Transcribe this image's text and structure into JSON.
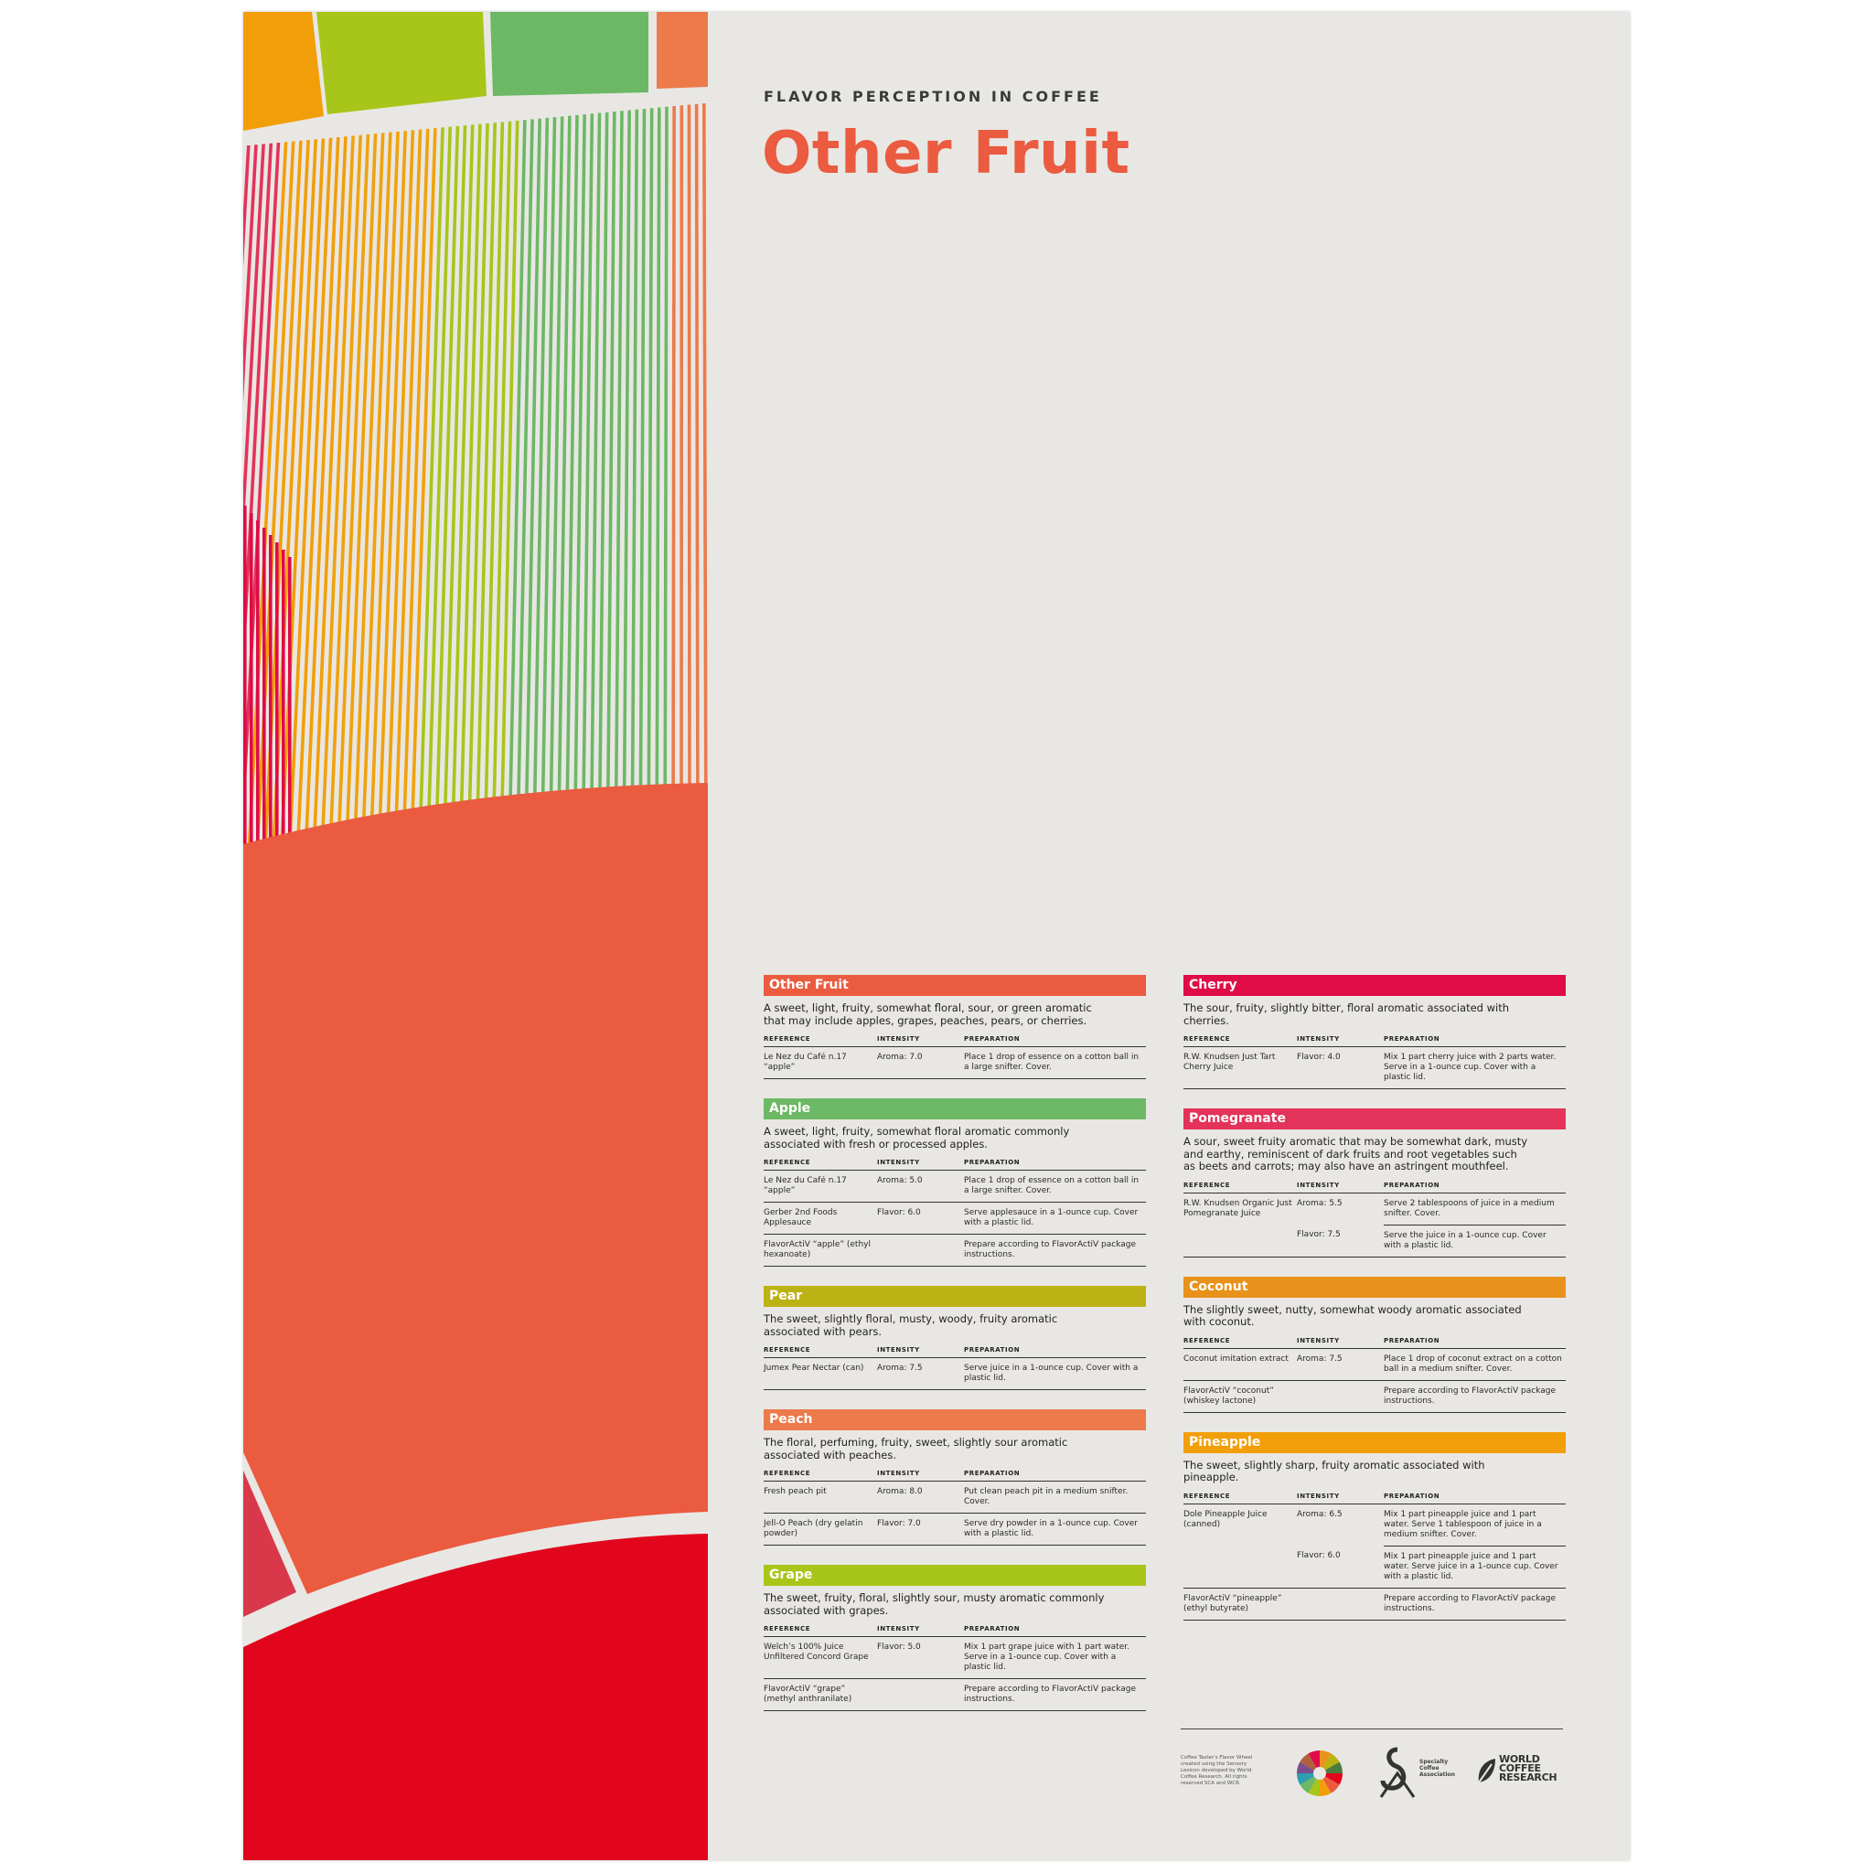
{
  "header": {
    "eyebrow": "FLAVOR PERCEPTION IN COFFEE",
    "title": "Other Fruit"
  },
  "table_labels": {
    "reference": "REFERENCE",
    "intensity": "INTENSITY",
    "preparation": "PREPARATION"
  },
  "colors": {
    "other_fruit": "#ea5b40",
    "apple": "#6cb865",
    "pear": "#bbb215",
    "peach": "#ec7a4a",
    "grape": "#a8c51a",
    "cherry": "#df0c47",
    "pomegranate": "#e3335a",
    "coconut": "#e8921c",
    "pineapple": "#f29e08",
    "berry_red": "#e1061c",
    "background": "#e9e7e4"
  },
  "sections_left": [
    {
      "title": "Other Fruit",
      "color": "#ea5b40",
      "description": "A sweet, light, fruity, somewhat floral, sour, or green aromatic that may include apples, grapes, peaches, pears, or cherries.",
      "rows": [
        {
          "reference": "Le Nez du Café n.17 “apple”",
          "intensity": "Aroma: 7.0",
          "preparation": "Place 1 drop of essence on a cotton ball in a large snifter. Cover."
        }
      ]
    },
    {
      "title": "Apple",
      "color": "#6cb865",
      "description": "A sweet, light, fruity, somewhat floral aromatic commonly associated with fresh or processed apples.",
      "rows": [
        {
          "reference": "Le Nez du Café n.17 “apple”",
          "intensity": "Aroma: 5.0",
          "preparation": "Place 1 drop of essence on a cotton ball in a large snifter. Cover."
        },
        {
          "reference": "Gerber 2nd Foods Applesauce",
          "intensity": "Flavor: 6.0",
          "preparation": "Serve applesauce in a 1-ounce cup. Cover with a plastic lid."
        },
        {
          "reference": "FlavorActiV “apple” (ethyl hexanoate)",
          "intensity": "",
          "preparation": "Prepare according to FlavorActiV package instructions."
        }
      ]
    },
    {
      "title": "Pear",
      "color": "#bbb215",
      "description": "The sweet, slightly floral, musty, woody, fruity aromatic associated with pears.",
      "rows": [
        {
          "reference": "Jumex Pear Nectar (can)",
          "intensity": "Aroma: 7.5",
          "preparation": "Serve juice in a 1-ounce cup. Cover with a plastic lid."
        }
      ]
    },
    {
      "title": "Peach",
      "color": "#ec7a4a",
      "description": "The floral, perfuming, fruity, sweet, slightly sour aromatic associated with peaches.",
      "rows": [
        {
          "reference": "Fresh peach pit",
          "intensity": "Aroma: 8.0",
          "preparation": "Put clean peach pit in a medium snifter. Cover."
        },
        {
          "reference": "Jell-O Peach (dry gelatin powder)",
          "intensity": "Flavor: 7.0",
          "preparation": "Serve dry powder in a 1-ounce cup. Cover with a plastic lid."
        }
      ]
    },
    {
      "title": "Grape",
      "color": "#a8c51a",
      "description": "The sweet, fruity, floral, slightly sour, musty aromatic commonly associated with grapes.",
      "rows": [
        {
          "reference": "Welch’s 100% Juice Unfiltered Concord Grape",
          "intensity": "Flavor: 5.0",
          "preparation": "Mix 1 part grape juice with 1 part water. Serve in a 1-ounce cup. Cover with a plastic lid."
        },
        {
          "reference": "FlavorActiV “grape” (methyl anthranilate)",
          "intensity": "",
          "preparation": "Prepare according to FlavorActiV package instructions."
        }
      ]
    }
  ],
  "sections_right": [
    {
      "title": "Cherry",
      "color": "#df0c47",
      "description": "The sour, fruity, slightly bitter, floral aromatic associated with cherries.",
      "rows": [
        {
          "reference": "R.W. Knudsen Just Tart Cherry Juice",
          "intensity": "Flavor: 4.0",
          "preparation": "Mix 1 part cherry juice with 2 parts water. Serve in a 1-ounce cup. Cover with a plastic lid."
        }
      ]
    },
    {
      "title": "Pomegranate",
      "color": "#e3335a",
      "description": "A sour, sweet fruity aromatic that may be somewhat dark, musty and earthy, reminiscent of dark fruits and root vegetables such as beets and carrots; may also have an astringent mouthfeel.",
      "rows": [
        {
          "reference": "R.W. Knudsen Organic Just Pomegranate Juice",
          "intensity": "Aroma: 5.5",
          "preparation": "Serve 2 tablespoons of juice in a medium snifter. Cover.",
          "noline_ref": true
        },
        {
          "reference": "",
          "intensity": "Flavor: 7.5",
          "preparation": "Serve the juice in a 1-ounce cup. Cover with a plastic lid."
        }
      ]
    },
    {
      "title": "Coconut",
      "color": "#e8921c",
      "description": "The slightly sweet, nutty, somewhat woody aromatic associated with coconut.",
      "rows": [
        {
          "reference": "Coconut imitation extract",
          "intensity": "Aroma: 7.5",
          "preparation": "Place 1 drop of coconut extract on a cotton ball in a medium snifter. Cover."
        },
        {
          "reference": "FlavorActiV “coconut” (whiskey lactone)",
          "intensity": "",
          "preparation": "Prepare according to FlavorActiV package instructions."
        }
      ]
    },
    {
      "title": "Pineapple",
      "color": "#f29e08",
      "description": "The sweet, slightly sharp, fruity aromatic associated with pineapple.",
      "rows": [
        {
          "reference": "Dole Pineapple Juice (canned)",
          "intensity": "Aroma: 6.5",
          "preparation": "Mix 1 part pineapple juice and 1 part water. Serve 1 tablespoon of juice in a medium snifter. Cover.",
          "noline_ref": true
        },
        {
          "reference": "",
          "intensity": "Flavor: 6.0",
          "preparation": "Mix 1 part pineapple juice and 1 part water. Serve juice in a 1-ounce cup. Cover with a plastic lid."
        },
        {
          "reference": "FlavorActiV “pineapple” (ethyl butyrate)",
          "intensity": "",
          "preparation": "Prepare according to FlavorActiV package instructions."
        }
      ]
    }
  ],
  "footer": {
    "note": "Coffee Taster’s Flavor Wheel created using the Sensory Lexicon developed by World Coffee Research. All rights reserved SCA and WCR.",
    "sca_logo_text": "Specialty Coffee Association",
    "wcr_line1": "WORLD",
    "wcr_line2": "COFFEE",
    "wcr_line3": "RESEARCH"
  }
}
